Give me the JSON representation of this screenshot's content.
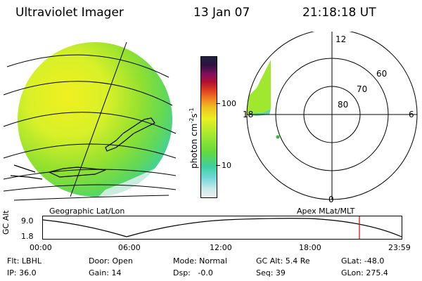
{
  "header": {
    "instrument": "Ultraviolet Imager",
    "date": "13 Jan 07",
    "time": "21:18:18 UT"
  },
  "colorbar": {
    "unit_label": "photon cm",
    "unit_exp1": "-2",
    "unit_mid": "s",
    "unit_exp2": "-1",
    "ticks": [
      "100",
      "10"
    ]
  },
  "polar_plot": {
    "mlt_labels": {
      "top": "12",
      "left": "18",
      "right": "6",
      "bottom": "0"
    },
    "lat_labels": [
      "60",
      "70",
      "80"
    ],
    "title": "Apex MLat/MLT"
  },
  "geo_map": {
    "title": "Geographic Lat/Lon"
  },
  "altitude_plot": {
    "ylabel": "GC Alt",
    "y_ticks": [
      "9.0",
      "1.8"
    ],
    "x_ticks": [
      "00:00",
      "06:00",
      "12:00",
      "18:00",
      "23:59"
    ],
    "marker_color": "#dd0000"
  },
  "status": {
    "filter": "Flt: LBHL",
    "ip": "IP: 36.0",
    "door": "Door: Open",
    "gain": "Gain: 14",
    "mode": "Mode: Normal",
    "dsp": "Dsp:   -0.0",
    "gc_alt": "GC Alt: 5.4 Re",
    "seq": "Seq: 39",
    "glat": "GLat: -48.0",
    "glon": "GLon: 275.4"
  },
  "colors": {
    "aurora_yellow": "#e8f020",
    "aurora_green": "#7fe030",
    "aurora_cyan": "#50d8c0"
  }
}
